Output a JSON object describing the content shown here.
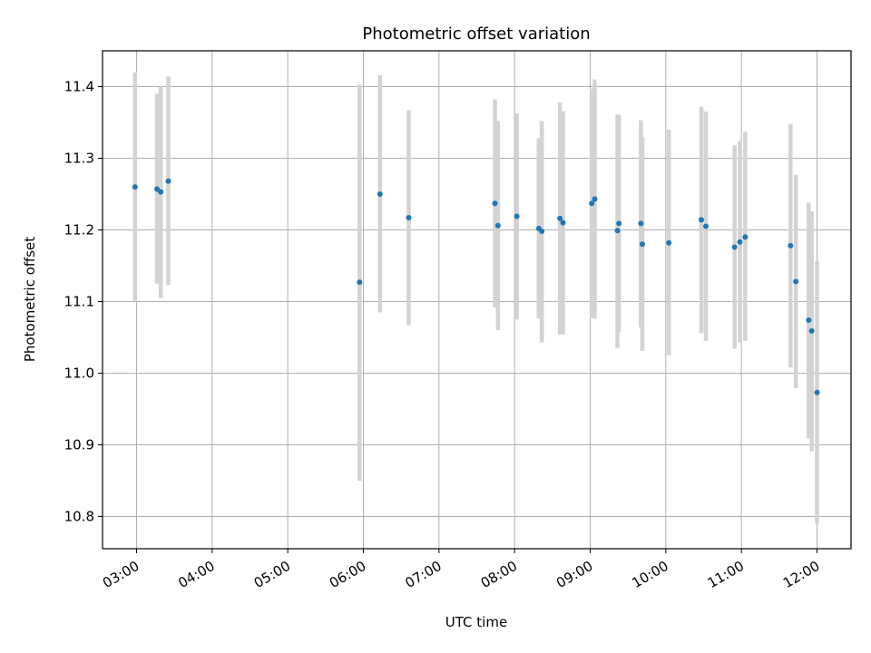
{
  "chart_data": {
    "type": "scatter",
    "title": "Photometric offset variation",
    "xlabel": "UTC time",
    "ylabel": "Photometric offset",
    "x_unit": "hours UTC",
    "xlim": [
      2.55,
      12.45
    ],
    "ylim": [
      10.755,
      11.45
    ],
    "x_ticks": [
      3,
      4,
      5,
      6,
      7,
      8,
      9,
      10,
      11,
      12
    ],
    "x_tick_labels": [
      "03:00",
      "04:00",
      "05:00",
      "06:00",
      "07:00",
      "08:00",
      "09:00",
      "10:00",
      "11:00",
      "12:00"
    ],
    "y_ticks": [
      10.8,
      10.9,
      11.0,
      11.1,
      11.2,
      11.3,
      11.4
    ],
    "y_tick_labels": [
      "10.8",
      "10.9",
      "11.0",
      "11.1",
      "11.2",
      "11.3",
      "11.4"
    ],
    "grid": true,
    "marker_color": "#1f77b4",
    "errorbar_color": "#d3d3d3",
    "points": [
      {
        "x": 2.98,
        "y": 11.26,
        "lo": 11.1,
        "hi": 11.42
      },
      {
        "x": 3.27,
        "y": 11.257,
        "lo": 11.125,
        "hi": 11.39
      },
      {
        "x": 3.32,
        "y": 11.253,
        "lo": 11.105,
        "hi": 11.4
      },
      {
        "x": 3.42,
        "y": 11.268,
        "lo": 11.123,
        "hi": 11.414
      },
      {
        "x": 5.95,
        "y": 11.127,
        "lo": 10.85,
        "hi": 11.403
      },
      {
        "x": 6.22,
        "y": 11.25,
        "lo": 11.085,
        "hi": 11.416
      },
      {
        "x": 6.6,
        "y": 11.217,
        "lo": 11.067,
        "hi": 11.367
      },
      {
        "x": 7.74,
        "y": 11.237,
        "lo": 11.092,
        "hi": 11.382
      },
      {
        "x": 7.78,
        "y": 11.206,
        "lo": 11.06,
        "hi": 11.352
      },
      {
        "x": 8.03,
        "y": 11.219,
        "lo": 11.075,
        "hi": 11.363
      },
      {
        "x": 8.32,
        "y": 11.202,
        "lo": 11.076,
        "hi": 11.328
      },
      {
        "x": 8.36,
        "y": 11.198,
        "lo": 11.043,
        "hi": 11.352
      },
      {
        "x": 8.6,
        "y": 11.216,
        "lo": 11.054,
        "hi": 11.378
      },
      {
        "x": 8.64,
        "y": 11.21,
        "lo": 11.054,
        "hi": 11.366
      },
      {
        "x": 9.02,
        "y": 11.237,
        "lo": 11.077,
        "hi": 11.397
      },
      {
        "x": 9.06,
        "y": 11.243,
        "lo": 11.076,
        "hi": 11.41
      },
      {
        "x": 9.36,
        "y": 11.199,
        "lo": 11.035,
        "hi": 11.361
      },
      {
        "x": 9.38,
        "y": 11.209,
        "lo": 11.058,
        "hi": 11.36
      },
      {
        "x": 9.67,
        "y": 11.209,
        "lo": 11.064,
        "hi": 11.353
      },
      {
        "x": 9.69,
        "y": 11.18,
        "lo": 11.031,
        "hi": 11.329
      },
      {
        "x": 10.04,
        "y": 11.182,
        "lo": 11.025,
        "hi": 11.34
      },
      {
        "x": 10.47,
        "y": 11.214,
        "lo": 11.056,
        "hi": 11.372
      },
      {
        "x": 10.53,
        "y": 11.205,
        "lo": 11.045,
        "hi": 11.365
      },
      {
        "x": 10.91,
        "y": 11.176,
        "lo": 11.034,
        "hi": 11.318
      },
      {
        "x": 10.98,
        "y": 11.183,
        "lo": 11.043,
        "hi": 11.324
      },
      {
        "x": 11.05,
        "y": 11.19,
        "lo": 11.045,
        "hi": 11.337
      },
      {
        "x": 11.65,
        "y": 11.178,
        "lo": 11.008,
        "hi": 11.348
      },
      {
        "x": 11.72,
        "y": 11.128,
        "lo": 10.979,
        "hi": 11.277
      },
      {
        "x": 11.89,
        "y": 11.074,
        "lo": 10.909,
        "hi": 11.238
      },
      {
        "x": 11.93,
        "y": 11.059,
        "lo": 10.891,
        "hi": 11.226
      },
      {
        "x": 12.0,
        "y": 10.973,
        "lo": 10.79,
        "hi": 11.156
      }
    ]
  }
}
